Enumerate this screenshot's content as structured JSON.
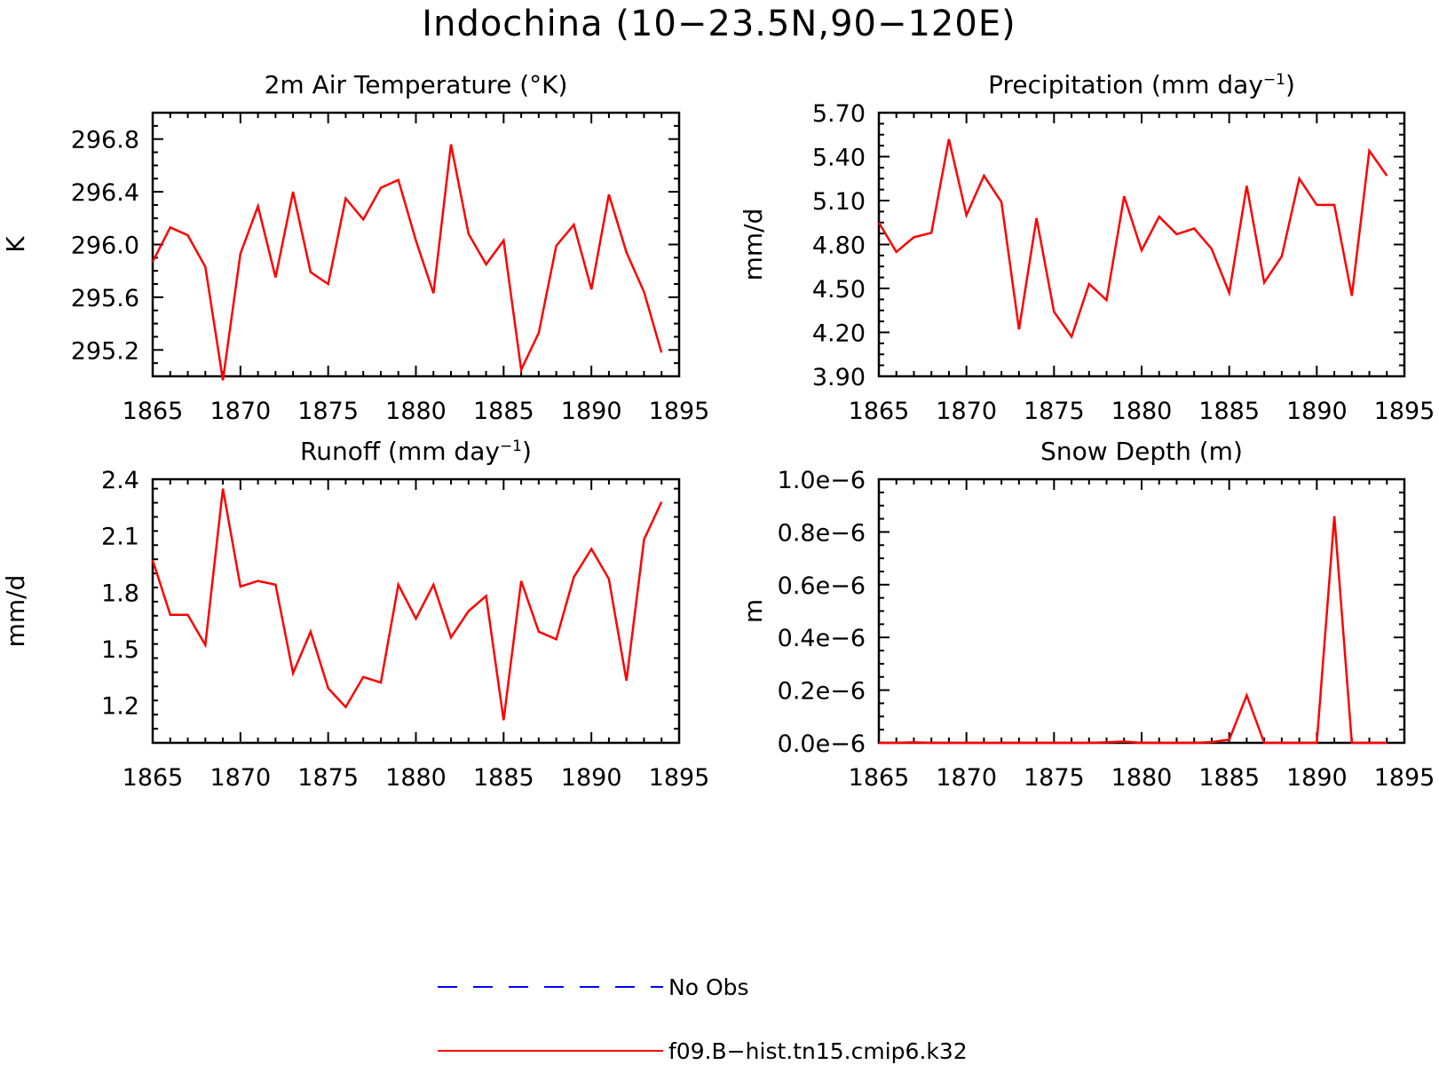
{
  "figure": {
    "title": "Indochina (10−23.5N,90−120E)"
  },
  "legend": {
    "entries": [
      {
        "label": "No Obs",
        "color": "#0000ff",
        "dashed": true
      },
      {
        "label": "f09.B−hist.tn15.cmip6.k32",
        "color": "#ff0000",
        "dashed": false
      }
    ]
  },
  "colors": {
    "model": "#ff0000",
    "obs": "#0000ff",
    "axes": "#000000"
  },
  "chart_data": [
    {
      "type": "line",
      "title": "2m Air Temperature (°K)",
      "ylabel": "K",
      "xlabel": "",
      "xlim": [
        1865,
        1895
      ],
      "ylim": [
        295.0,
        297.0
      ],
      "xticks": [
        1865,
        1870,
        1875,
        1880,
        1885,
        1890,
        1895
      ],
      "xtick_labels": [
        "1865",
        "1870",
        "1875",
        "1880",
        "1885",
        "1890",
        "1895"
      ],
      "yticks": [
        295.2,
        295.6,
        296.0,
        296.4,
        296.8
      ],
      "ytick_labels": [
        "295.2",
        "295.6",
        "296.0",
        "296.4",
        "296.8"
      ],
      "x": [
        1865,
        1866,
        1867,
        1868,
        1869,
        1870,
        1871,
        1872,
        1873,
        1874,
        1875,
        1876,
        1877,
        1878,
        1879,
        1880,
        1881,
        1882,
        1883,
        1884,
        1885,
        1886,
        1887,
        1888,
        1889,
        1890,
        1891,
        1892,
        1893,
        1894
      ],
      "series": [
        {
          "name": "f09.B−hist.tn15.cmip6.k32",
          "values": [
            295.87,
            296.13,
            296.07,
            295.83,
            294.97,
            295.93,
            296.29,
            295.75,
            296.4,
            295.79,
            295.7,
            296.35,
            296.19,
            296.43,
            296.49,
            296.03,
            295.63,
            296.76,
            296.08,
            295.85,
            296.03,
            295.05,
            295.33,
            295.99,
            296.15,
            295.66,
            296.38,
            295.94,
            295.64,
            295.18
          ]
        }
      ]
    },
    {
      "type": "line",
      "title": "Precipitation (mm day",
      "title_sup": "−1",
      "title_end": ")",
      "ylabel": "mm/d",
      "xlabel": "",
      "xlim": [
        1865,
        1895
      ],
      "ylim": [
        3.9,
        5.7
      ],
      "xticks": [
        1865,
        1870,
        1875,
        1880,
        1885,
        1890,
        1895
      ],
      "xtick_labels": [
        "1865",
        "1870",
        "1875",
        "1880",
        "1885",
        "1890",
        "1895"
      ],
      "yticks": [
        3.9,
        4.2,
        4.5,
        4.8,
        5.1,
        5.4,
        5.7
      ],
      "ytick_labels": [
        "3.90",
        "4.20",
        "4.50",
        "4.80",
        "5.10",
        "5.40",
        "5.70"
      ],
      "x": [
        1865,
        1866,
        1867,
        1868,
        1869,
        1870,
        1871,
        1872,
        1873,
        1874,
        1875,
        1876,
        1877,
        1878,
        1879,
        1880,
        1881,
        1882,
        1883,
        1884,
        1885,
        1886,
        1887,
        1888,
        1889,
        1890,
        1891,
        1892,
        1893,
        1894
      ],
      "series": [
        {
          "name": "f09.B−hist.tn15.cmip6.k32",
          "values": [
            4.95,
            4.75,
            4.85,
            4.88,
            5.52,
            5.0,
            5.27,
            5.09,
            4.22,
            4.98,
            4.34,
            4.17,
            4.53,
            4.42,
            5.13,
            4.76,
            4.99,
            4.87,
            4.91,
            4.77,
            4.47,
            5.2,
            4.54,
            4.72,
            5.25,
            5.07,
            5.07,
            4.45,
            5.44,
            5.27
          ]
        }
      ]
    },
    {
      "type": "line",
      "title": "Runoff (mm day",
      "title_sup": "−1",
      "title_end": ")",
      "ylabel": "mm/d",
      "xlabel": "",
      "xlim": [
        1865,
        1895
      ],
      "ylim": [
        1.0,
        2.4
      ],
      "xticks": [
        1865,
        1870,
        1875,
        1880,
        1885,
        1890,
        1895
      ],
      "xtick_labels": [
        "1865",
        "1870",
        "1875",
        "1880",
        "1885",
        "1890",
        "1895"
      ],
      "yticks": [
        1.2,
        1.5,
        1.8,
        2.1,
        2.4
      ],
      "ytick_labels": [
        "1.2",
        "1.5",
        "1.8",
        "2.1",
        "2.4"
      ],
      "x": [
        1865,
        1866,
        1867,
        1868,
        1869,
        1870,
        1871,
        1872,
        1873,
        1874,
        1875,
        1876,
        1877,
        1878,
        1879,
        1880,
        1881,
        1882,
        1883,
        1884,
        1885,
        1886,
        1887,
        1888,
        1889,
        1890,
        1891,
        1892,
        1893,
        1894
      ],
      "series": [
        {
          "name": "f09.B−hist.tn15.cmip6.k32",
          "values": [
            1.97,
            1.68,
            1.68,
            1.52,
            2.35,
            1.83,
            1.86,
            1.84,
            1.37,
            1.59,
            1.29,
            1.19,
            1.35,
            1.32,
            1.84,
            1.66,
            1.84,
            1.56,
            1.7,
            1.78,
            1.12,
            1.86,
            1.59,
            1.55,
            1.88,
            2.03,
            1.87,
            1.33,
            2.08,
            2.28
          ]
        }
      ]
    },
    {
      "type": "line",
      "title": "Snow Depth (m)",
      "ylabel": "m",
      "xlabel": "",
      "xlim": [
        1865,
        1895
      ],
      "ylim": [
        0.0,
        1e-06
      ],
      "xticks": [
        1865,
        1870,
        1875,
        1880,
        1885,
        1890,
        1895
      ],
      "xtick_labels": [
        "1865",
        "1870",
        "1875",
        "1880",
        "1885",
        "1890",
        "1895"
      ],
      "yticks": [
        0.0,
        2e-07,
        4e-07,
        6e-07,
        8e-07,
        1e-06
      ],
      "ytick_labels": [
        "0.0e−6",
        "0.2e−6",
        "0.4e−6",
        "0.6e−6",
        "0.8e−6",
        "1.0e−6"
      ],
      "x": [
        1865,
        1866,
        1867,
        1868,
        1869,
        1870,
        1871,
        1872,
        1873,
        1874,
        1875,
        1876,
        1877,
        1878,
        1879,
        1880,
        1881,
        1882,
        1883,
        1884,
        1885,
        1886,
        1887,
        1888,
        1889,
        1890,
        1891,
        1892,
        1893,
        1894
      ],
      "series": [
        {
          "name": "f09.B−hist.tn15.cmip6.k32",
          "values": [
            0,
            0,
            2e-09,
            0,
            0,
            0,
            0,
            0,
            0,
            0,
            0,
            0,
            0,
            2e-09,
            5e-09,
            0,
            0,
            0,
            0,
            3e-09,
            1.2e-08,
            1.8e-07,
            0,
            0,
            0,
            0,
            8.6e-07,
            0,
            0,
            0
          ]
        }
      ]
    }
  ]
}
